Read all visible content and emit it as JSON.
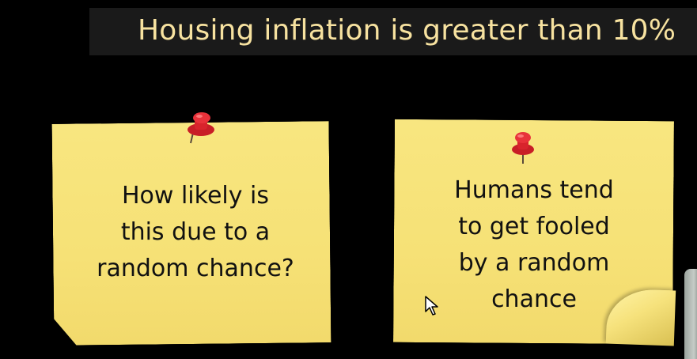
{
  "slide": {
    "title": "Housing inflation is greater than 10%"
  },
  "notes": {
    "left": {
      "lines": [
        "How likely is",
        "this due to a",
        "random chance?"
      ],
      "pin_icon": "pushpin-icon"
    },
    "right": {
      "lines": [
        "Humans tend",
        "to get fooled",
        "by a random",
        "chance"
      ],
      "pin_icon": "pushpin-icon"
    }
  },
  "cursor": {
    "icon": "mouse-pointer-icon"
  },
  "colors": {
    "background": "#000000",
    "title_bar": "#1a1a1a",
    "title_text": "#f7e2a0",
    "sticky_note": "#f7e47a",
    "pin": "#d8242c"
  }
}
